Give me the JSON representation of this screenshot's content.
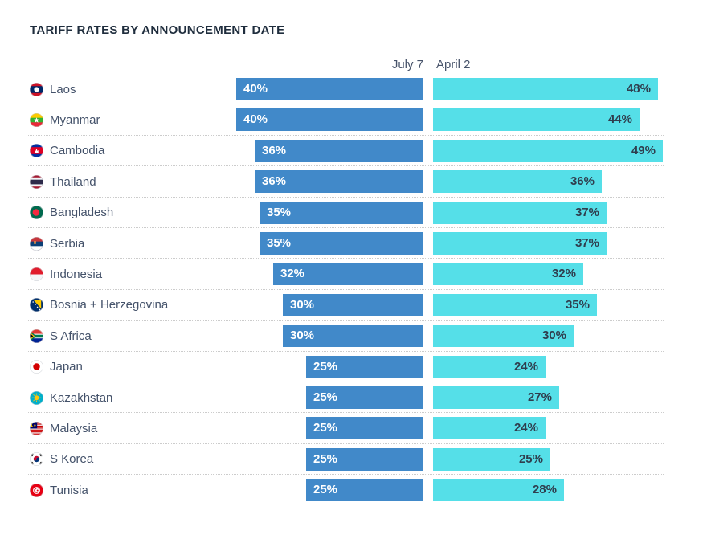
{
  "title": "TARIFF RATES BY ANNOUNCEMENT DATE",
  "column_headers": {
    "july7": "July 7",
    "april2": "April 2"
  },
  "colors": {
    "july7_bar": "#4189c9",
    "april2_bar": "#55dfe8",
    "title_text": "#1f2d3d",
    "header_text": "#47536a",
    "country_text": "#44526a",
    "value_on_blue": "#ffffff",
    "value_on_cyan": "#2f3e4e",
    "separator": "#cccccc",
    "background": "#ffffff"
  },
  "chart_data": {
    "type": "bar",
    "orientation": "horizontal",
    "title": "TARIFF RATES BY ANNOUNCEMENT DATE",
    "value_suffix": "%",
    "xlim": [
      0,
      49
    ],
    "grid": false,
    "legend_position": "top",
    "categories": [
      "Laos",
      "Myanmar",
      "Cambodia",
      "Thailand",
      "Bangladesh",
      "Serbia",
      "Indonesia",
      "Bosnia + Herzegovina",
      "S Africa",
      "Japan",
      "Kazakhstan",
      "Malaysia",
      "S Korea",
      "Tunisia"
    ],
    "flag_icons": [
      "flag-laos-icon",
      "flag-myanmar-icon",
      "flag-cambodia-icon",
      "flag-thailand-icon",
      "flag-bangladesh-icon",
      "flag-serbia-icon",
      "flag-indonesia-icon",
      "flag-bosnia-herzegovina-icon",
      "flag-s-africa-icon",
      "flag-japan-icon",
      "flag-kazakhstan-icon",
      "flag-malaysia-icon",
      "flag-s-korea-icon",
      "flag-tunisia-icon"
    ],
    "series": [
      {
        "name": "July 7",
        "color": "#4189c9",
        "values": [
          40,
          40,
          36,
          36,
          35,
          35,
          32,
          30,
          30,
          25,
          25,
          25,
          25,
          25
        ]
      },
      {
        "name": "April 2",
        "color": "#55dfe8",
        "values": [
          48,
          44,
          49,
          36,
          37,
          37,
          32,
          35,
          30,
          24,
          27,
          24,
          25,
          28
        ]
      }
    ]
  }
}
